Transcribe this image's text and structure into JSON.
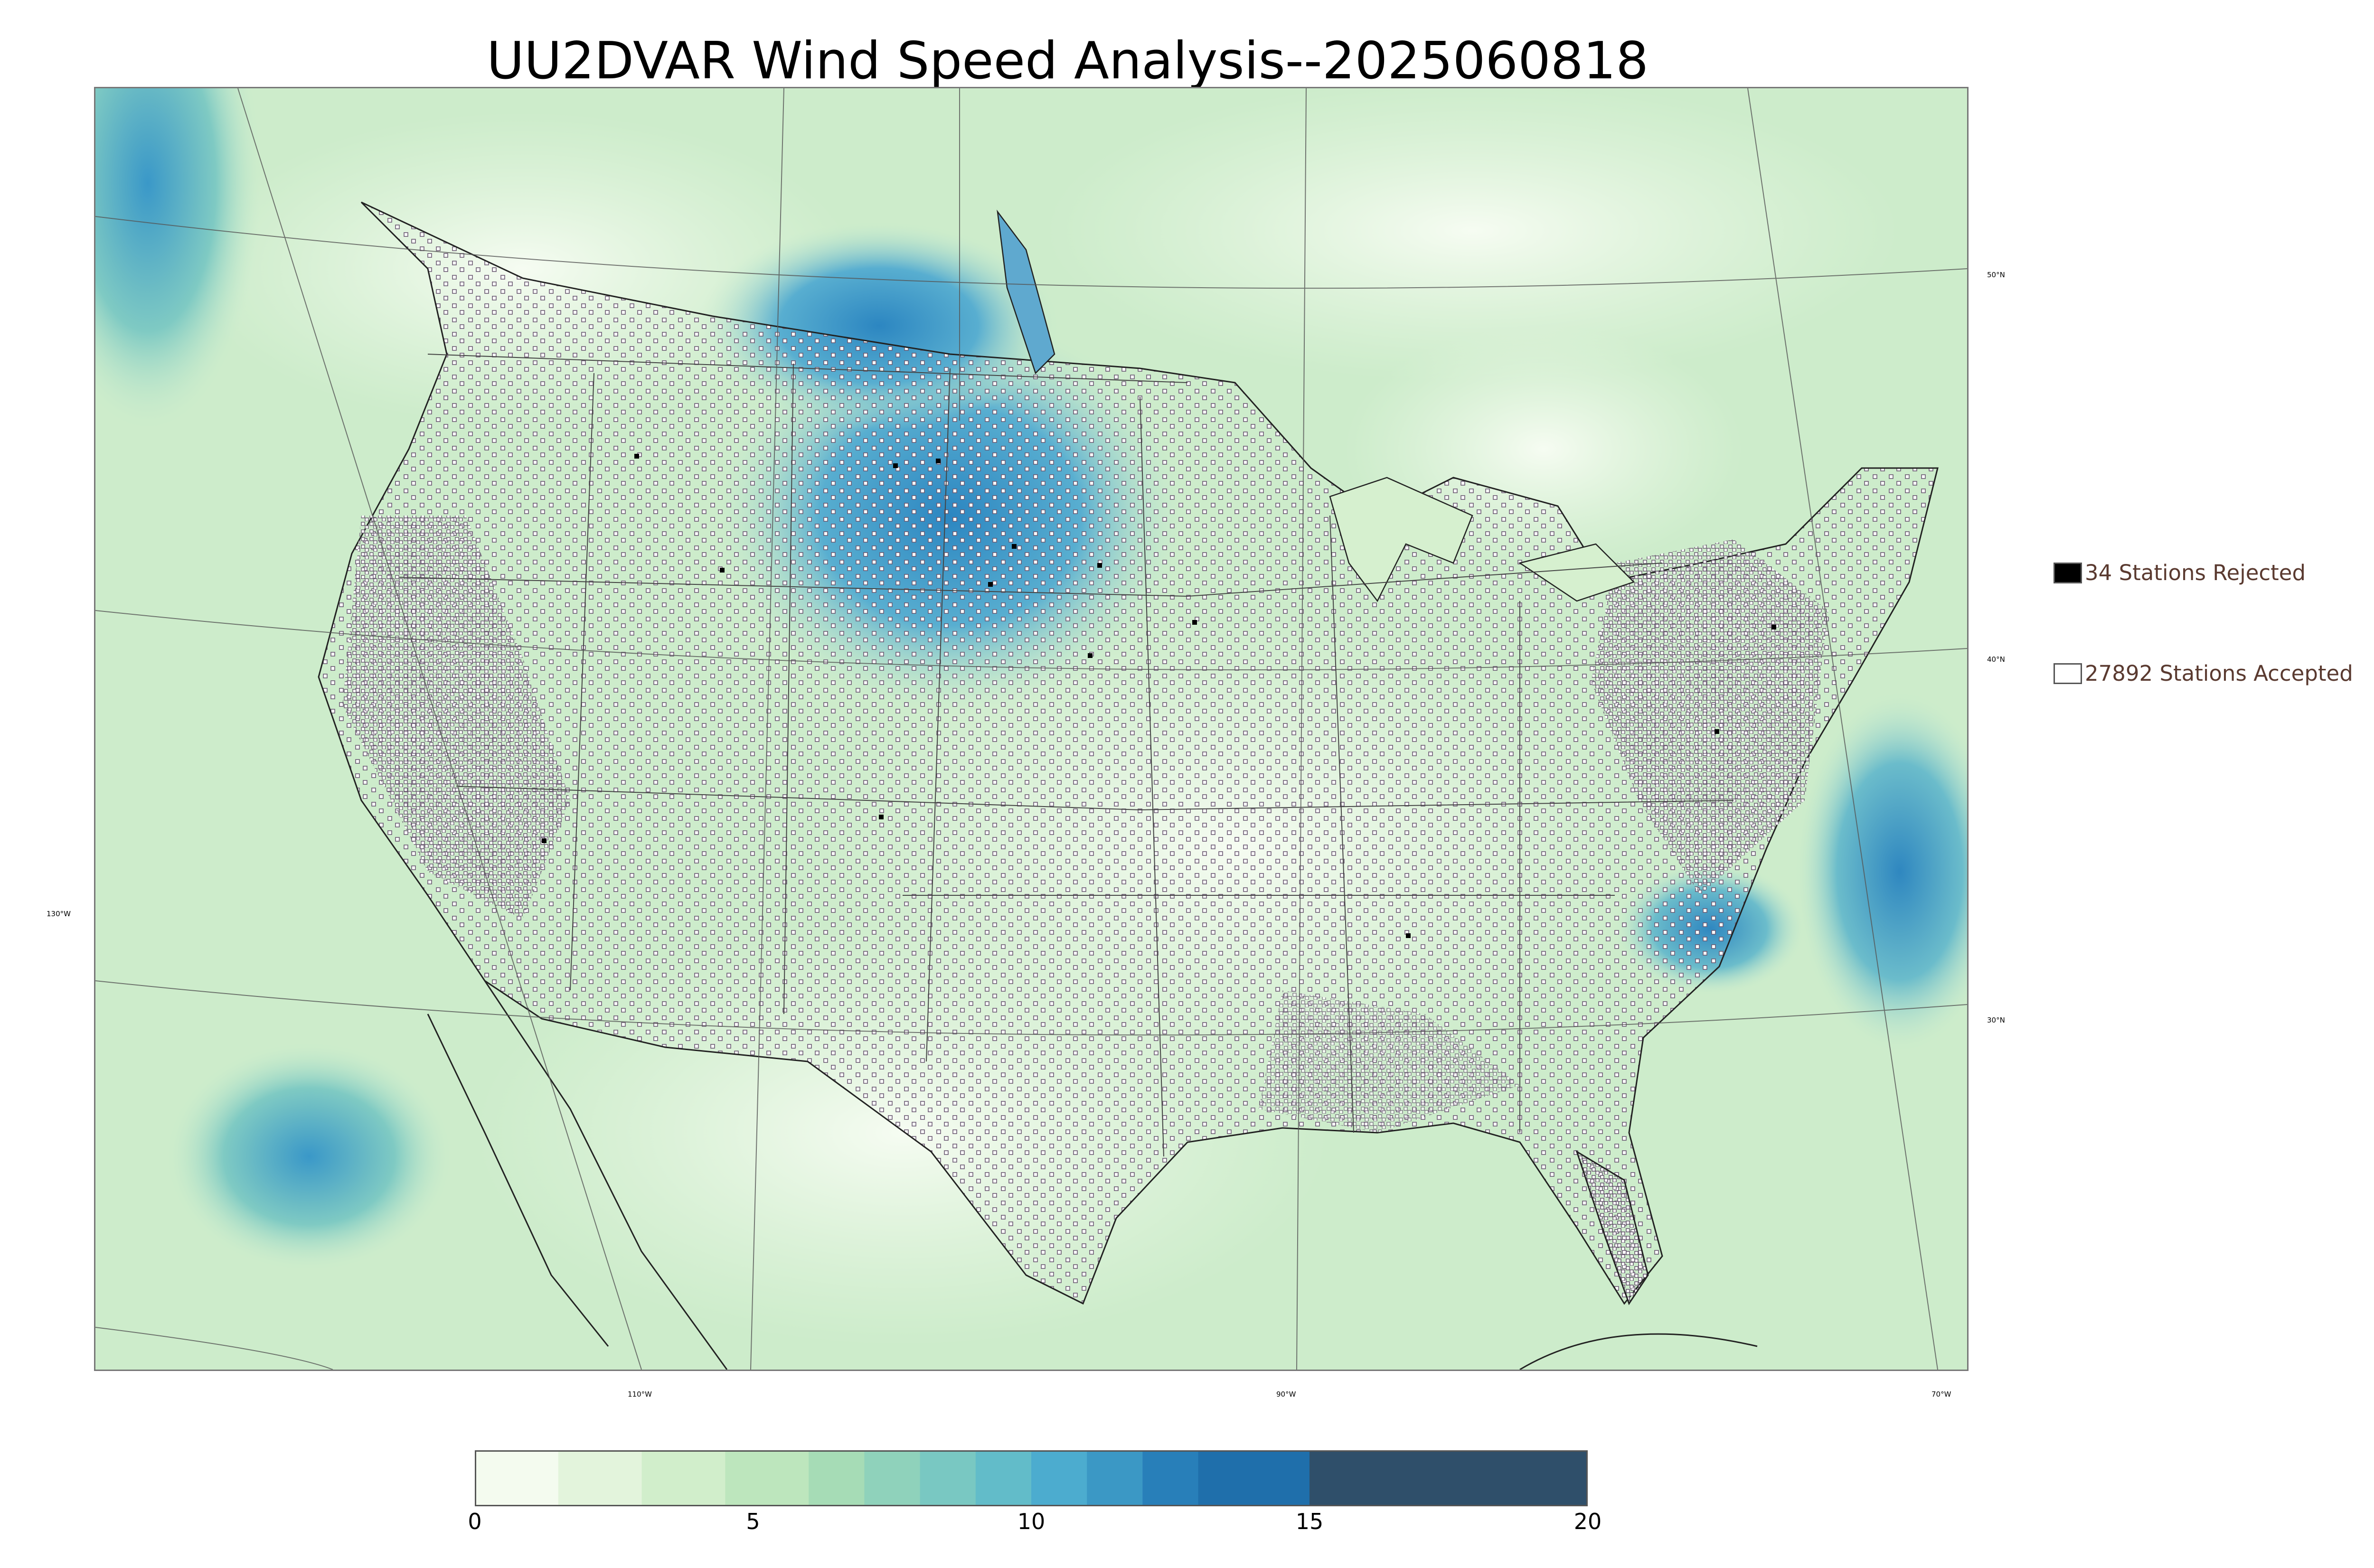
{
  "title": "UU2DVAR Wind Speed Analysis--2025060818",
  "map": {
    "lat_labels": [
      "50°N",
      "40°N",
      "30°N"
    ],
    "lon_labels": [
      "130°W",
      "110°W",
      "90°W",
      "70°W"
    ]
  },
  "legend": {
    "rejected": "34 Stations Rejected",
    "accepted": "27892 Stations Accepted",
    "rejected_color": "#000000",
    "accepted_color": "#ffffff"
  },
  "colorbar": {
    "min": 0,
    "max": 20,
    "ticks": [
      "0",
      "5",
      "10",
      "15",
      "20"
    ],
    "colors": [
      "#f4fbef",
      "#e3f4dc",
      "#d1eecb",
      "#bde6bd",
      "#a6dcb6",
      "#8fd2bb",
      "#79c8c2",
      "#62bcc9",
      "#4caccf",
      "#3b98c5",
      "#287fb9",
      "#1f6fab",
      "#2f4f6a"
    ]
  },
  "stations": {
    "rejected_count": 34,
    "accepted_count": 27892
  }
}
